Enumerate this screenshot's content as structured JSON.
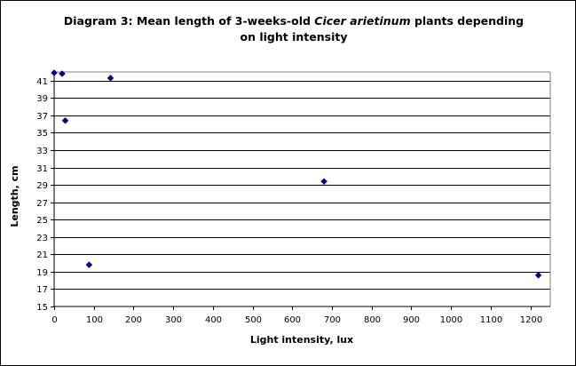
{
  "chart_data": {
    "type": "scatter",
    "title": {
      "part1": "Diagram 3: Mean length of 3-weeks-old ",
      "italic": "Cicer arietinum",
      "part2": " plants depending on light intensity"
    },
    "xlabel": "Light intensity, lux",
    "ylabel": "Length, cm",
    "xlim": [
      0,
      1250
    ],
    "ylim": [
      15,
      42
    ],
    "x_ticks": [
      0,
      100,
      200,
      300,
      400,
      500,
      600,
      700,
      800,
      900,
      1000,
      1100,
      1200
    ],
    "y_ticks": [
      15,
      17,
      19,
      21,
      23,
      25,
      27,
      29,
      31,
      33,
      35,
      37,
      39,
      41
    ],
    "grid": "horizontal",
    "marker": "diamond",
    "colors": {
      "marker": "#000080",
      "gridline": "#000000",
      "plot_background": "#ffffff",
      "frame": "#000000"
    },
    "points": [
      {
        "x": 0,
        "y": 41.9
      },
      {
        "x": 20,
        "y": 41.8
      },
      {
        "x": 28,
        "y": 36.4
      },
      {
        "x": 142,
        "y": 41.3
      },
      {
        "x": 88,
        "y": 19.8
      },
      {
        "x": 680,
        "y": 29.4
      },
      {
        "x": 1220,
        "y": 18.6
      }
    ]
  }
}
